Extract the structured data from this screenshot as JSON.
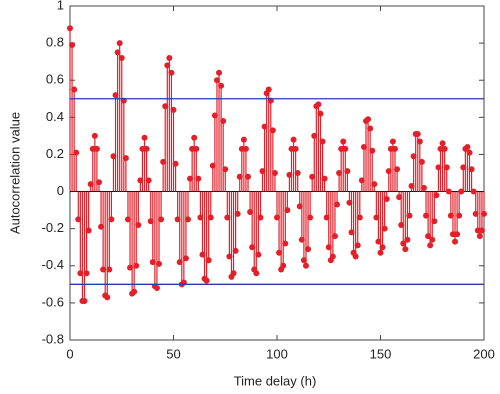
{
  "chart_data": {
    "type": "stem",
    "xlabel": "Time delay (h)",
    "ylabel": "Autocorrelation value",
    "xlim": [
      0,
      200
    ],
    "xticks": [
      0,
      50,
      100,
      150,
      200
    ],
    "ylim": [
      -0.8,
      1
    ],
    "yticks": [
      1,
      0.8,
      0.6,
      0.4,
      0.2,
      0,
      -0.2,
      -0.4,
      -0.6,
      -0.8
    ],
    "hlines": [
      0.5,
      -0.5
    ],
    "hline_color": "#2a3aa8",
    "baseline_color": "#000000",
    "series": [
      {
        "color": "#e3202a",
        "x": [
          0,
          1,
          2,
          3,
          4,
          5,
          6,
          7,
          8,
          9,
          10,
          11,
          12,
          13,
          14,
          15,
          16,
          17,
          18,
          19,
          20,
          21,
          22,
          23,
          24,
          25,
          26,
          27,
          28,
          29,
          30,
          31,
          32,
          33,
          34,
          35,
          36,
          37,
          38,
          39,
          40,
          41,
          42,
          43,
          44,
          45,
          46,
          47,
          48,
          49,
          50,
          51,
          52,
          53,
          54,
          55,
          56,
          57,
          58,
          59,
          60,
          61,
          62,
          63,
          64,
          65,
          66,
          67,
          68,
          69,
          70,
          71,
          72,
          73,
          74,
          75,
          76,
          77,
          78,
          79,
          80,
          81,
          82,
          83,
          84,
          85,
          86,
          87,
          88,
          89,
          90,
          91,
          92,
          93,
          94,
          95,
          96,
          97,
          98,
          99,
          100,
          101,
          102,
          103,
          104,
          105,
          106,
          107,
          108,
          109,
          110,
          111,
          112,
          113,
          114,
          115,
          116,
          117,
          118,
          119,
          120,
          121,
          122,
          123,
          124,
          125,
          126,
          127,
          128,
          129,
          130,
          131,
          132,
          133,
          134,
          135,
          136,
          137,
          138,
          139,
          140,
          141,
          142,
          143,
          144,
          145,
          146,
          147,
          148,
          149,
          150,
          151,
          152,
          153,
          154,
          155,
          156,
          157,
          158,
          159,
          160,
          161,
          162,
          163,
          164,
          165,
          166,
          167,
          168,
          169,
          170,
          171,
          172,
          173,
          174,
          175,
          176,
          177,
          178,
          179,
          180,
          181,
          182,
          183,
          184,
          185,
          186,
          187,
          188,
          189,
          190,
          191,
          192,
          193,
          194,
          195,
          196,
          197,
          198,
          199,
          200
        ],
        "values": [
          0.88,
          0.79,
          0.55,
          0.21,
          -0.15,
          -0.44,
          -0.59,
          -0.59,
          -0.44,
          -0.21,
          0.04,
          0.23,
          0.3,
          0.23,
          0.05,
          -0.19,
          -0.42,
          -0.56,
          -0.57,
          -0.42,
          -0.15,
          0.19,
          0.52,
          0.75,
          0.8,
          0.72,
          0.49,
          0.18,
          -0.15,
          -0.41,
          -0.55,
          -0.54,
          -0.4,
          -0.18,
          0.06,
          0.23,
          0.29,
          0.23,
          0.06,
          -0.16,
          -0.38,
          -0.51,
          -0.52,
          -0.39,
          -0.15,
          0.16,
          0.46,
          0.68,
          0.72,
          0.64,
          0.44,
          0.15,
          -0.15,
          -0.38,
          -0.5,
          -0.49,
          -0.36,
          -0.15,
          0.07,
          0.23,
          0.29,
          0.23,
          0.07,
          -0.14,
          -0.34,
          -0.47,
          -0.48,
          -0.37,
          -0.14,
          0.14,
          0.41,
          0.6,
          0.64,
          0.57,
          0.38,
          0.12,
          -0.14,
          -0.35,
          -0.46,
          -0.44,
          -0.32,
          -0.12,
          0.08,
          0.23,
          0.28,
          0.23,
          0.08,
          -0.11,
          -0.3,
          -0.42,
          -0.44,
          -0.34,
          -0.14,
          0.11,
          0.35,
          0.53,
          0.55,
          0.49,
          0.33,
          0.1,
          -0.14,
          -0.33,
          -0.42,
          -0.4,
          -0.28,
          -0.1,
          0.09,
          0.23,
          0.28,
          0.23,
          0.1,
          -0.08,
          -0.26,
          -0.37,
          -0.4,
          -0.31,
          -0.14,
          0.08,
          0.3,
          0.46,
          0.47,
          0.42,
          0.27,
          0.07,
          -0.14,
          -0.3,
          -0.37,
          -0.35,
          -0.24,
          -0.07,
          0.1,
          0.23,
          0.27,
          0.23,
          0.11,
          -0.06,
          -0.22,
          -0.33,
          -0.35,
          -0.29,
          -0.14,
          0.06,
          0.24,
          0.38,
          0.39,
          0.34,
          0.22,
          0.04,
          -0.14,
          -0.27,
          -0.33,
          -0.3,
          -0.2,
          -0.04,
          0.11,
          0.23,
          0.27,
          0.23,
          0.12,
          -0.03,
          -0.18,
          -0.28,
          -0.31,
          -0.26,
          -0.13,
          0.03,
          0.19,
          0.31,
          0.31,
          0.27,
          0.16,
          0.02,
          -0.13,
          -0.24,
          -0.29,
          -0.26,
          -0.16,
          -0.02,
          0.13,
          0.23,
          0.26,
          0.23,
          0.13,
          0,
          -0.13,
          -0.23,
          -0.27,
          -0.23,
          -0.13,
          0,
          0.13,
          0.23,
          0.24,
          0.21,
          0.12,
          0,
          -0.12,
          -0.21,
          -0.24,
          -0.21,
          -0.12
        ]
      }
    ]
  }
}
